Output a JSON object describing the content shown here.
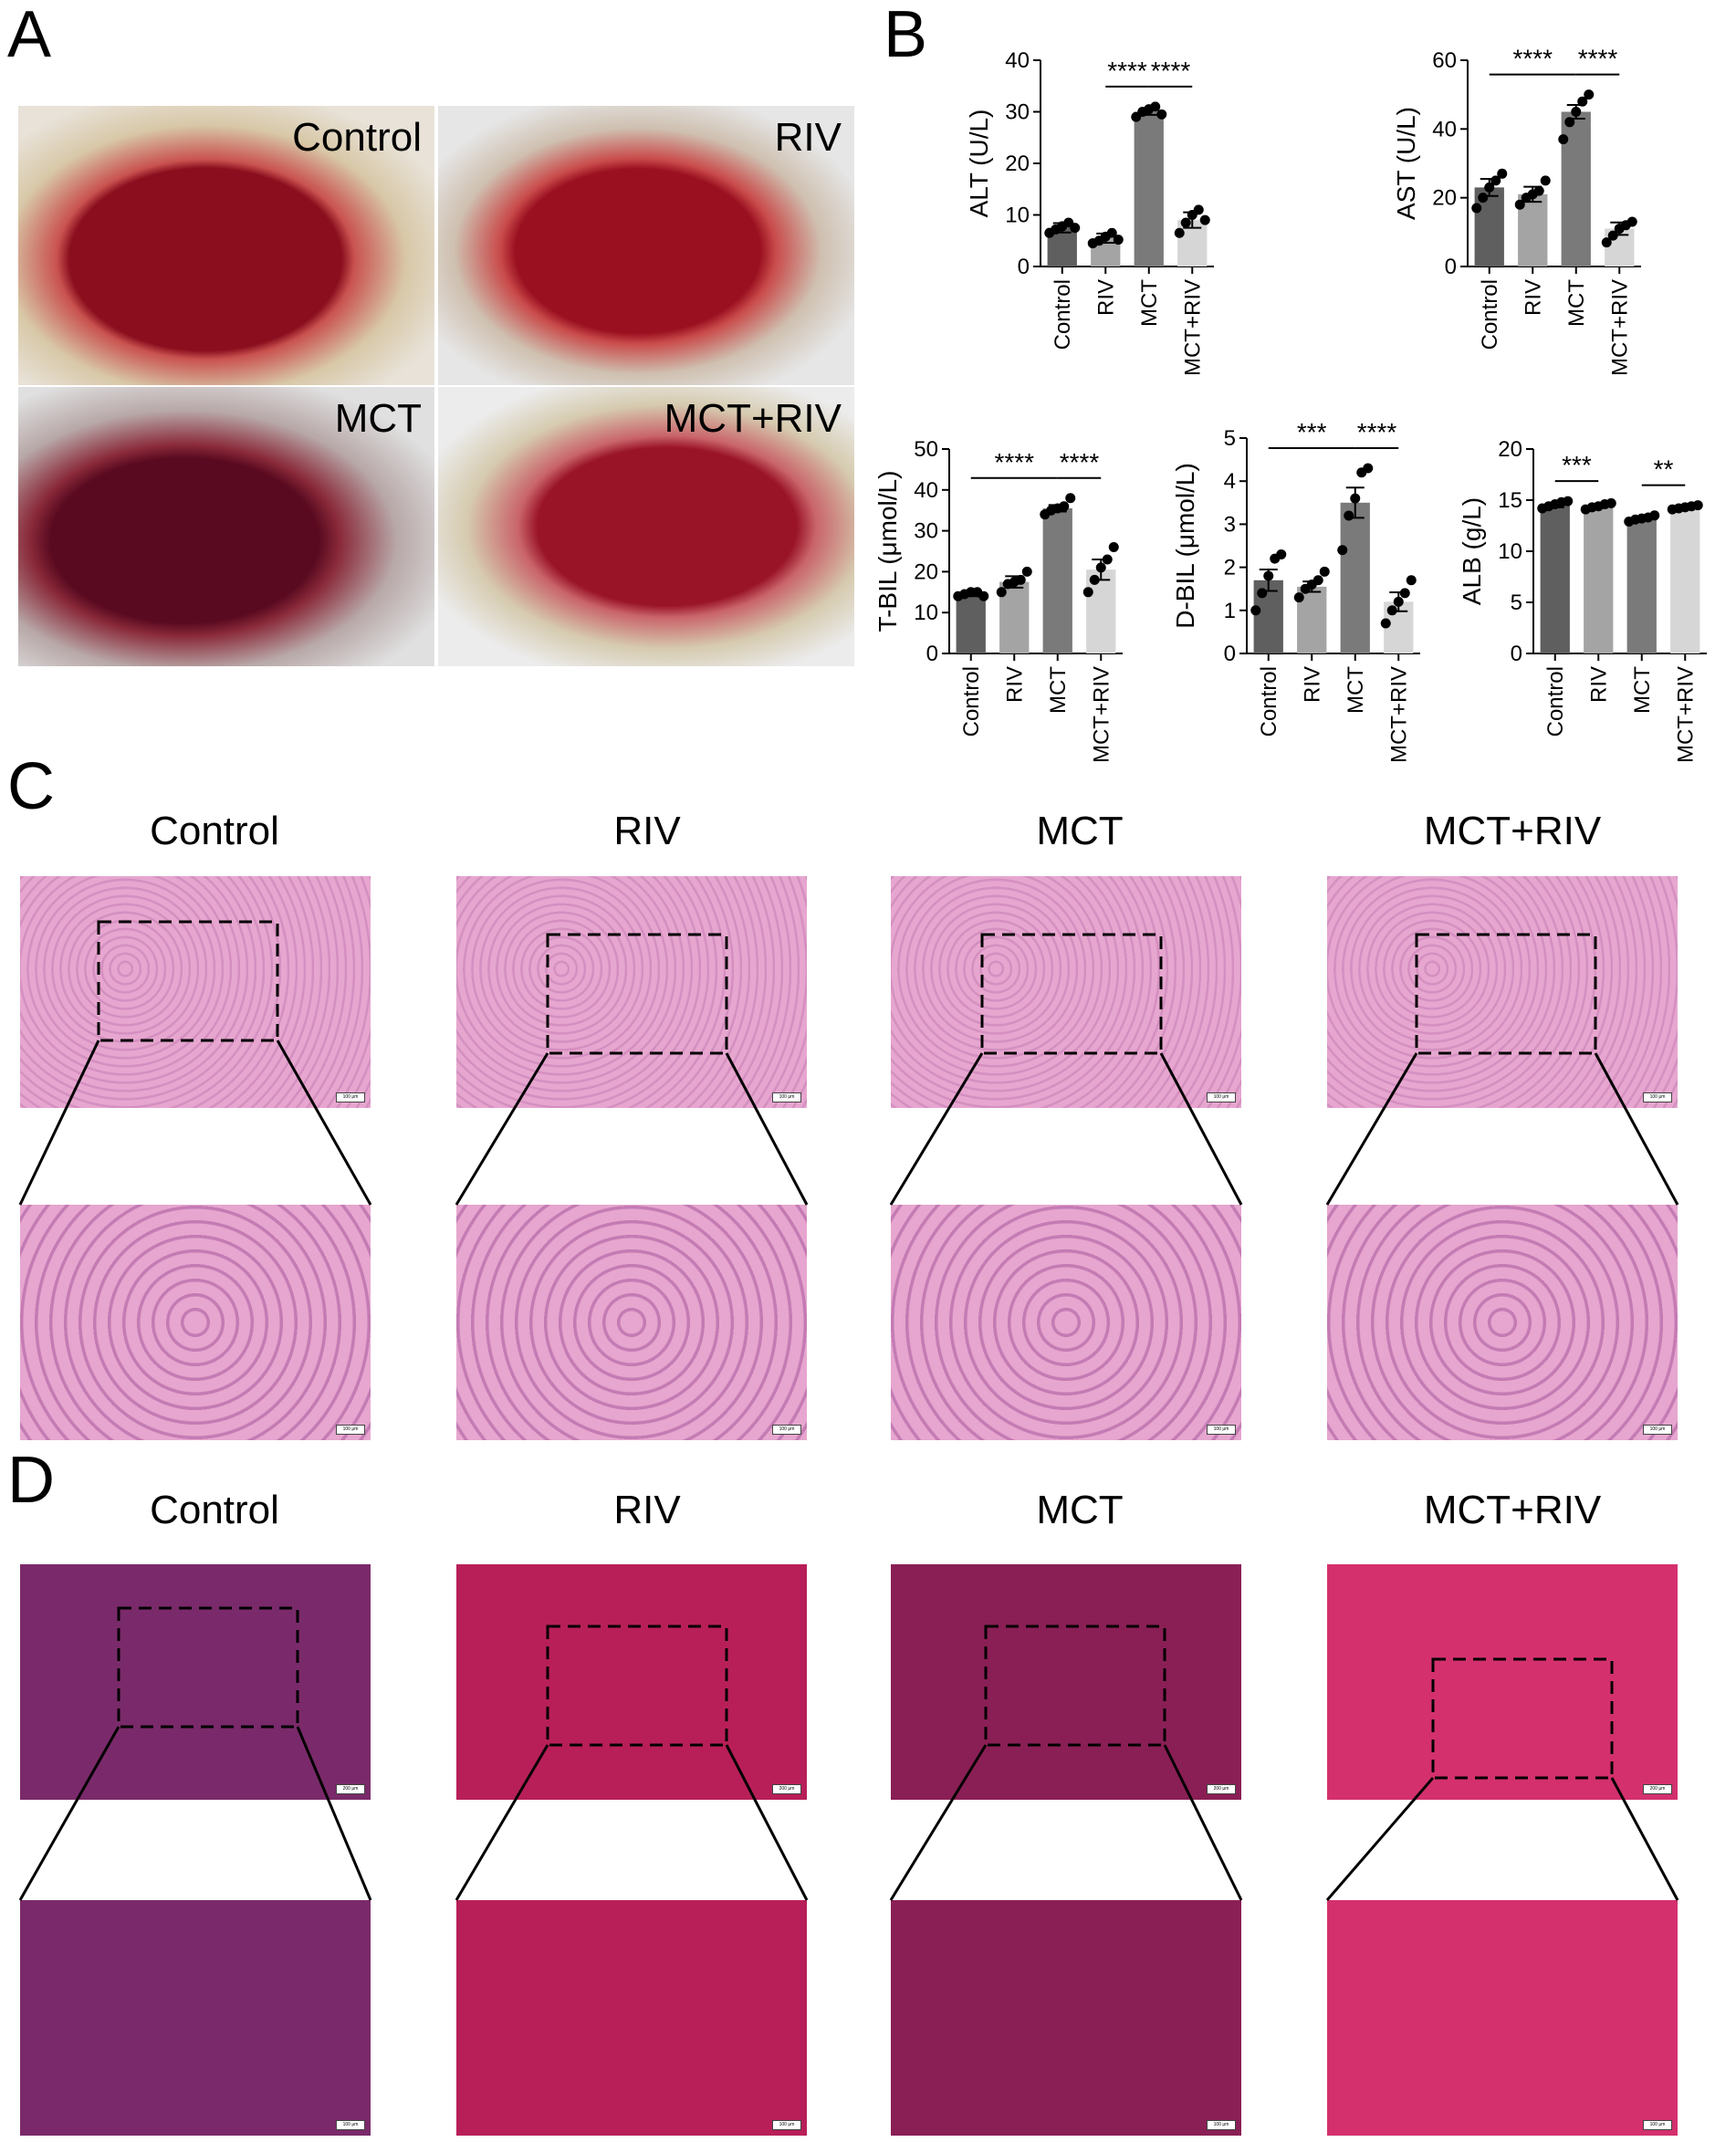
{
  "panels": {
    "A": "A",
    "B": "B",
    "C": "C",
    "D": "D"
  },
  "panel_a": {
    "labels": [
      "Control",
      "RIV",
      "MCT",
      "MCT+RIV"
    ]
  },
  "panel_c": {
    "titles": [
      "Control",
      "RIV",
      "MCT",
      "MCT+RIV"
    ],
    "scale_label": "100 μm"
  },
  "panel_d": {
    "titles": [
      "Control",
      "RIV",
      "MCT",
      "MCT+RIV"
    ],
    "scale_label_top": "200 μm",
    "scale_label_bottom": "100 μm"
  },
  "colors": {
    "Control": "#5f5f5f",
    "RIV": "#a4a4a4",
    "MCT": "#7a7a7a",
    "MCT+RIV": "#d6d6d6",
    "he_stain": "#e6a6cf",
    "masson_stain": "#a5205a"
  },
  "chart_data": [
    {
      "type": "bar",
      "categories": [
        "Control",
        "RIV",
        "MCT",
        "MCT+RIV"
      ],
      "values": [
        7.5,
        5.5,
        30,
        9
      ],
      "errors": [
        0.9,
        0.9,
        0.6,
        1.5
      ],
      "points": [
        [
          6.5,
          7.2,
          7.8,
          8.5,
          7.5
        ],
        [
          4.5,
          5.0,
          5.8,
          6.5,
          5.2
        ],
        [
          29,
          30,
          30.5,
          31,
          29.5
        ],
        [
          6.5,
          8.5,
          10,
          11,
          9
        ]
      ],
      "ylabel": "ALT (U/L)",
      "ylim": [
        0,
        40
      ],
      "yticks": [
        0,
        10,
        20,
        30,
        40
      ],
      "significance": [
        {
          "from": 1,
          "to": 2,
          "label": "****"
        },
        {
          "from": 2,
          "to": 3,
          "label": "****"
        }
      ]
    },
    {
      "type": "bar",
      "categories": [
        "Control",
        "RIV",
        "MCT",
        "MCT+RIV"
      ],
      "values": [
        23,
        21,
        45,
        11
      ],
      "errors": [
        2.5,
        2.2,
        2.0,
        1.8
      ],
      "points": [
        [
          17,
          20,
          23,
          25,
          27
        ],
        [
          18,
          20,
          21,
          22,
          25
        ],
        [
          37,
          42,
          45,
          48,
          50
        ],
        [
          7,
          9,
          11,
          12,
          13
        ]
      ],
      "ylabel": "AST (U/L)",
      "ylim": [
        0,
        60
      ],
      "yticks": [
        0,
        20,
        40,
        60
      ],
      "significance": [
        {
          "from": 0,
          "to": 2,
          "label": "****"
        },
        {
          "from": 2,
          "to": 3,
          "label": "****"
        }
      ]
    },
    {
      "type": "bar",
      "categories": [
        "Control",
        "RIV",
        "MCT",
        "MCT+RIV"
      ],
      "values": [
        14.5,
        17.5,
        35.5,
        20.5
      ],
      "errors": [
        0.5,
        1.4,
        0.8,
        2.5
      ],
      "points": [
        [
          14,
          14.5,
          15,
          15,
          14
        ],
        [
          15,
          17,
          17.5,
          18,
          20
        ],
        [
          34,
          35,
          35.5,
          36,
          38
        ],
        [
          15,
          18,
          21,
          23,
          26
        ]
      ],
      "ylabel": "T-BIL (μmol/L)",
      "ylim": [
        0,
        50
      ],
      "yticks": [
        0,
        10,
        20,
        30,
        40,
        50
      ],
      "significance": [
        {
          "from": 0,
          "to": 2,
          "label": "****"
        },
        {
          "from": 2,
          "to": 3,
          "label": "****"
        }
      ]
    },
    {
      "type": "bar",
      "categories": [
        "Control",
        "RIV",
        "MCT",
        "MCT+RIV"
      ],
      "values": [
        1.7,
        1.55,
        3.5,
        1.2
      ],
      "errors": [
        0.25,
        0.12,
        0.35,
        0.22
      ],
      "points": [
        [
          1.0,
          1.4,
          1.8,
          2.2,
          2.3
        ],
        [
          1.3,
          1.5,
          1.6,
          1.7,
          1.9
        ],
        [
          2.4,
          3.2,
          3.6,
          4.2,
          4.3
        ],
        [
          0.7,
          1.0,
          1.2,
          1.4,
          1.7
        ]
      ],
      "ylabel": "D-BIL (μmol/L)",
      "ylim": [
        0,
        5
      ],
      "yticks": [
        0,
        1,
        2,
        3,
        4,
        5
      ],
      "significance": [
        {
          "from": 0,
          "to": 2,
          "label": "***"
        },
        {
          "from": 2,
          "to": 3,
          "label": "****"
        }
      ]
    },
    {
      "type": "bar",
      "categories": [
        "Control",
        "RIV",
        "MCT",
        "MCT+RIV"
      ],
      "values": [
        14.5,
        14.4,
        13.2,
        14.3
      ],
      "errors": [
        0.2,
        0.15,
        0.15,
        0.1
      ],
      "points": [
        [
          14.2,
          14.4,
          14.6,
          14.8,
          14.9
        ],
        [
          14.1,
          14.3,
          14.4,
          14.6,
          14.7
        ],
        [
          12.9,
          13.1,
          13.2,
          13.3,
          13.5
        ],
        [
          14.1,
          14.2,
          14.3,
          14.4,
          14.5
        ]
      ],
      "ylabel": "ALB (g/L)",
      "ylim": [
        0,
        20
      ],
      "yticks": [
        0,
        5,
        10,
        15,
        20
      ],
      "significance": [
        {
          "from": 0,
          "to": 1,
          "label": "***"
        },
        {
          "from": 2,
          "to": 3,
          "label": "**"
        }
      ]
    }
  ]
}
